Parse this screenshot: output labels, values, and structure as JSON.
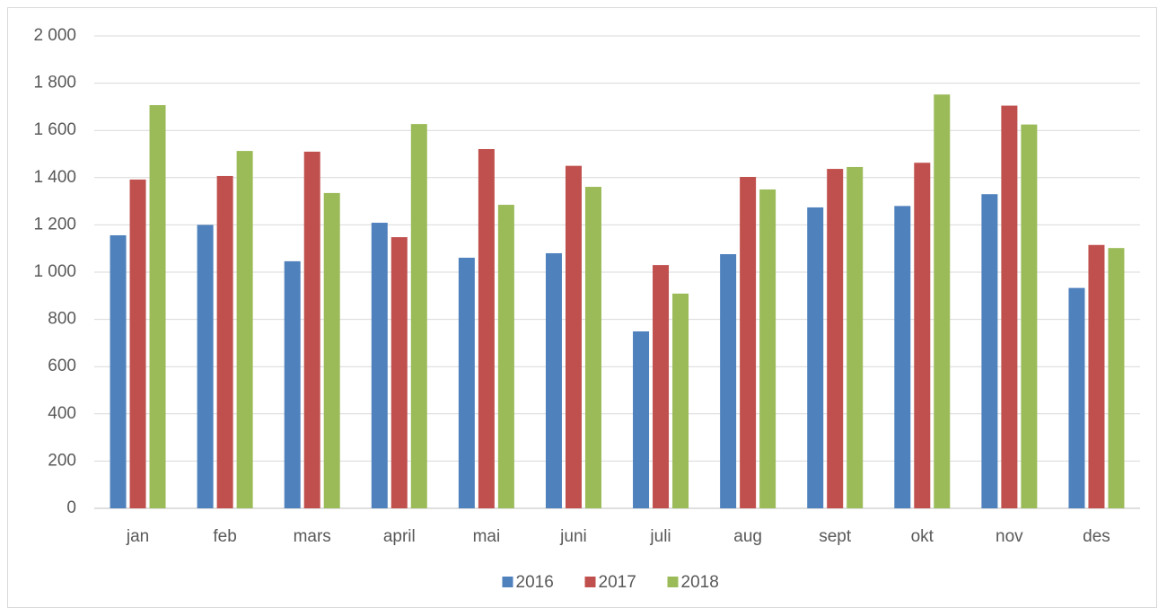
{
  "chart_data": {
    "type": "bar",
    "categories": [
      "jan",
      "feb",
      "mars",
      "april",
      "mai",
      "juni",
      "juli",
      "aug",
      "sept",
      "okt",
      "nov",
      "des"
    ],
    "series": [
      {
        "name": "2016",
        "color": "#4f81bd",
        "values": [
          1156,
          1200,
          1046,
          1209,
          1061,
          1080,
          749,
          1076,
          1274,
          1280,
          1330,
          933
        ]
      },
      {
        "name": "2017",
        "color": "#c0504d",
        "values": [
          1392,
          1407,
          1510,
          1148,
          1521,
          1450,
          1030,
          1403,
          1437,
          1463,
          1705,
          1115
        ]
      },
      {
        "name": "2018",
        "color": "#9bbb59",
        "values": [
          1707,
          1513,
          1335,
          1627,
          1285,
          1361,
          909,
          1350,
          1445,
          1752,
          1625,
          1102
        ]
      }
    ],
    "ylim": [
      0,
      2000
    ],
    "yticks": [
      0,
      200,
      400,
      600,
      800,
      {
        "value": 1000,
        "label": "1 000"
      },
      {
        "value": 1200,
        "label": "1 200"
      },
      {
        "value": 1400,
        "label": "1 400"
      },
      {
        "value": 1600,
        "label": "1 600"
      },
      {
        "value": 1800,
        "label": "1 800"
      },
      {
        "value": 2000,
        "label": "2 000"
      }
    ],
    "grid": true,
    "legend": "bottom"
  }
}
